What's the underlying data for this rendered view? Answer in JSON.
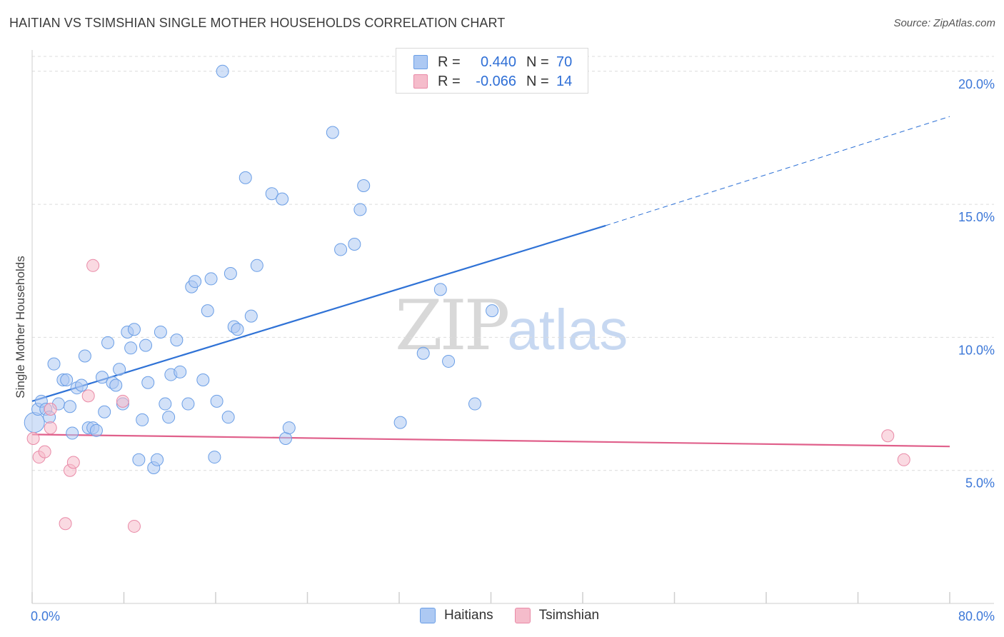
{
  "title": "HAITIAN VS TSIMSHIAN SINGLE MOTHER HOUSEHOLDS CORRELATION CHART",
  "source": "Source: ZipAtlas.com",
  "watermark": {
    "zip": "ZIP",
    "atlas": "atlas"
  },
  "colors": {
    "haitian_fill": "#adc9f3",
    "haitian_stroke": "#6a9ee6",
    "haitian_line": "#2f72d6",
    "tsimshian_fill": "#f5bccb",
    "tsimshian_stroke": "#e98aa7",
    "tsimshian_line": "#e0608b",
    "grid": "#dcdcdc",
    "tick_text": "#3d78d8"
  },
  "legend": {
    "rows": [
      {
        "r_label": "R =",
        "r_value": "0.440",
        "n_label": "N =",
        "n_value": "70"
      },
      {
        "r_label": "R =",
        "r_value": "-0.066",
        "n_label": "N =",
        "n_value": "14"
      }
    ]
  },
  "bottom_legend": {
    "haitians": "Haitians",
    "tsimshian": "Tsimshian"
  },
  "chart_data": {
    "type": "scatter",
    "title": "HAITIAN VS TSIMSHIAN SINGLE MOTHER HOUSEHOLDS CORRELATION CHART",
    "xlabel": "",
    "ylabel": "Single Mother Households",
    "xlim": [
      0,
      80
    ],
    "ylim": [
      0,
      20.8
    ],
    "x_tick_labels": [
      "0.0%",
      "80.0%"
    ],
    "y_ticks": [
      5,
      10,
      15,
      20
    ],
    "y_tick_labels": [
      "5.0%",
      "10.0%",
      "15.0%",
      "20.0%"
    ],
    "grid": "horizontal dashed",
    "legend_position": "top-center",
    "series": [
      {
        "name": "Haitians",
        "points": [
          [
            0.2,
            6.8
          ],
          [
            0.5,
            7.3
          ],
          [
            0.8,
            7.6
          ],
          [
            1.2,
            7.3
          ],
          [
            1.5,
            7.0
          ],
          [
            1.9,
            9.0
          ],
          [
            2.3,
            7.5
          ],
          [
            2.7,
            8.4
          ],
          [
            3.0,
            8.4
          ],
          [
            3.3,
            7.4
          ],
          [
            3.5,
            6.4
          ],
          [
            3.9,
            8.1
          ],
          [
            4.3,
            8.2
          ],
          [
            4.6,
            9.3
          ],
          [
            4.9,
            6.6
          ],
          [
            5.3,
            6.6
          ],
          [
            5.6,
            6.5
          ],
          [
            6.1,
            8.5
          ],
          [
            6.3,
            7.2
          ],
          [
            6.6,
            9.8
          ],
          [
            7.0,
            8.3
          ],
          [
            7.3,
            8.2
          ],
          [
            7.6,
            8.8
          ],
          [
            7.9,
            7.5
          ],
          [
            8.3,
            10.2
          ],
          [
            8.6,
            9.6
          ],
          [
            8.9,
            10.3
          ],
          [
            9.3,
            5.4
          ],
          [
            9.6,
            6.9
          ],
          [
            9.9,
            9.7
          ],
          [
            10.1,
            8.3
          ],
          [
            10.6,
            5.1
          ],
          [
            10.9,
            5.4
          ],
          [
            11.2,
            10.2
          ],
          [
            11.6,
            7.5
          ],
          [
            11.9,
            7.0
          ],
          [
            12.1,
            8.6
          ],
          [
            12.6,
            9.9
          ],
          [
            12.9,
            8.7
          ],
          [
            13.6,
            7.5
          ],
          [
            13.9,
            11.9
          ],
          [
            14.2,
            12.1
          ],
          [
            14.9,
            8.4
          ],
          [
            15.3,
            11.0
          ],
          [
            15.6,
            12.2
          ],
          [
            15.9,
            5.5
          ],
          [
            16.1,
            7.6
          ],
          [
            16.6,
            20.0
          ],
          [
            17.1,
            7.0
          ],
          [
            17.3,
            12.4
          ],
          [
            17.6,
            10.4
          ],
          [
            17.9,
            10.3
          ],
          [
            18.6,
            16.0
          ],
          [
            19.1,
            10.8
          ],
          [
            19.6,
            12.7
          ],
          [
            20.9,
            15.4
          ],
          [
            21.8,
            15.2
          ],
          [
            22.1,
            6.2
          ],
          [
            22.4,
            6.6
          ],
          [
            26.2,
            17.7
          ],
          [
            26.9,
            13.3
          ],
          [
            28.1,
            13.5
          ],
          [
            28.6,
            14.8
          ],
          [
            28.9,
            15.7
          ],
          [
            32.1,
            6.8
          ],
          [
            34.1,
            9.4
          ],
          [
            35.6,
            11.8
          ],
          [
            36.3,
            9.1
          ],
          [
            38.6,
            7.5
          ],
          [
            40.1,
            11.0
          ]
        ]
      },
      {
        "name": "Tsimshian",
        "points": [
          [
            0.1,
            6.2
          ],
          [
            0.6,
            5.5
          ],
          [
            1.1,
            5.7
          ],
          [
            1.6,
            6.6
          ],
          [
            1.6,
            7.3
          ],
          [
            2.9,
            3.0
          ],
          [
            3.3,
            5.0
          ],
          [
            3.6,
            5.3
          ],
          [
            4.9,
            7.8
          ],
          [
            5.3,
            12.7
          ],
          [
            7.9,
            7.6
          ],
          [
            8.9,
            2.9
          ],
          [
            74.6,
            6.3
          ],
          [
            76.0,
            5.4
          ]
        ]
      }
    ],
    "trend_lines": [
      {
        "series": "Haitians",
        "x": [
          0,
          50
        ],
        "y": [
          7.6,
          14.2
        ],
        "extended_dashed_to_x": 80,
        "extended_y": 18.3
      },
      {
        "series": "Tsimshian",
        "x": [
          0,
          80
        ],
        "y": [
          6.35,
          5.9
        ]
      }
    ]
  }
}
